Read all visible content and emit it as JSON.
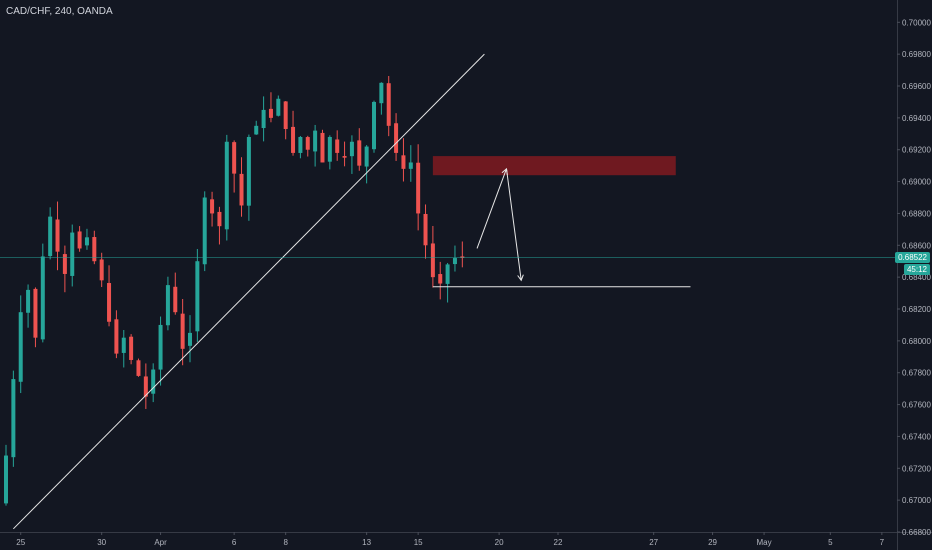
{
  "header": {
    "symbol": "CAD/CHF, 240, OANDA"
  },
  "colors": {
    "background": "#131722",
    "bull": "#26a69a",
    "bear": "#ef5350",
    "zone": "#7a1920",
    "axis_text": "#b2b5be",
    "current_price": "#26a69a"
  },
  "current_price": {
    "label": "0.68522",
    "value": 0.68522,
    "countdown": "45:12"
  },
  "chart_data": {
    "type": "candlestick",
    "title": "CAD/CHF, 240, OANDA",
    "ylim": [
      0.668,
      0.7014
    ],
    "y_ticks": [
      "0.70000",
      "0.69800",
      "0.69600",
      "0.69400",
      "0.69200",
      "0.69000",
      "0.68800",
      "0.68600",
      "0.68400",
      "0.68200",
      "0.68000",
      "0.67800",
      "0.67600",
      "0.67400",
      "0.67200",
      "0.67000",
      "0.66800"
    ],
    "x_ticks": [
      "25",
      "30",
      "Apr",
      "6",
      "8",
      "13",
      "15",
      "20",
      "22",
      "27",
      "29",
      "May",
      "5",
      "7"
    ],
    "x_tick_index": [
      2,
      13,
      21,
      31,
      38,
      49,
      56,
      67,
      75,
      88,
      96,
      103,
      112,
      119
    ],
    "candles_shown": 63,
    "closes": [
      0.6728,
      0.6776,
      0.6818,
      0.6832,
      0.6802,
      0.6853,
      0.6878,
      0.6856,
      0.6842,
      0.6868,
      0.6858,
      0.6865,
      0.685,
      0.6838,
      0.6812,
      0.6792,
      0.6802,
      0.6788,
      0.6778,
      0.6765,
      0.6782,
      0.681,
      0.6835,
      0.6818,
      0.6795,
      0.6805,
      0.685,
      0.689,
      0.688,
      0.6872,
      0.6925,
      0.6905,
      0.6885,
      0.6928,
      0.6935,
      0.6945,
      0.694,
      0.6952,
      0.6933,
      0.6918,
      0.6928,
      0.692,
      0.6932,
      0.6912,
      0.6928,
      0.6918,
      0.6915,
      0.6925,
      0.691,
      0.6922,
      0.695,
      0.6962,
      0.6935,
      0.6918,
      0.6908,
      0.6912,
      0.688,
      0.686,
      0.684,
      0.6836,
      0.6848,
      0.6852,
      0.68522
    ],
    "annotations": [
      {
        "type": "trendline",
        "from": [
          0.6682,
          1
        ],
        "to": [
          0.698,
          65
        ]
      },
      {
        "type": "supply-zone",
        "y_range": [
          0.6904,
          0.6916
        ],
        "x_range": [
          58,
          91
        ]
      },
      {
        "type": "level",
        "y": 0.6834,
        "x_range": [
          58,
          93
        ]
      },
      {
        "type": "projection-arrows",
        "points": [
          [
            64,
            0.6858
          ],
          [
            68,
            0.6908
          ],
          [
            70,
            0.6838
          ]
        ]
      }
    ]
  }
}
